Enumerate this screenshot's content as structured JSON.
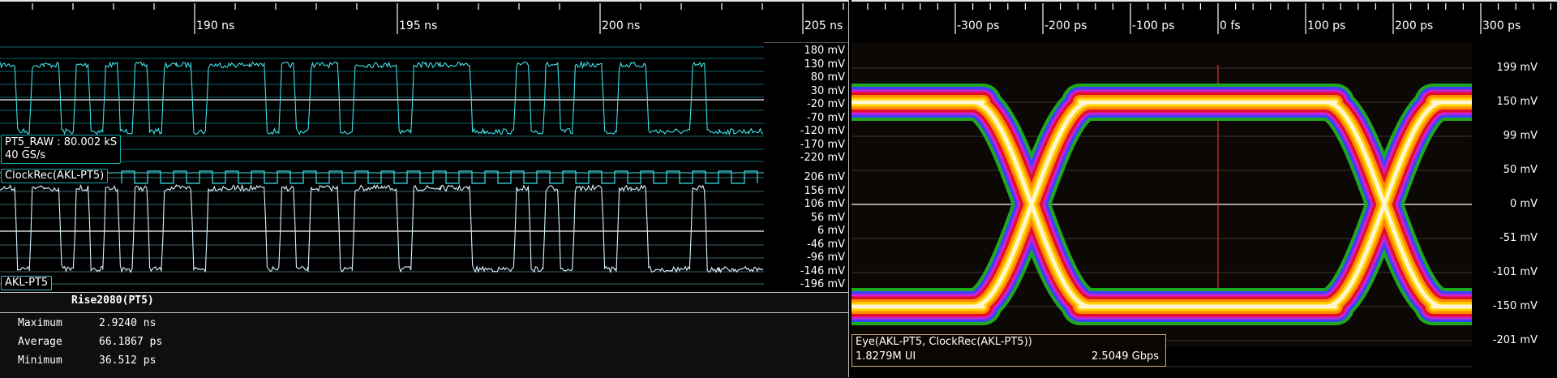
{
  "waveform_pane": {
    "time_axis": {
      "ticks": [
        {
          "label": "190 ns",
          "t": 190
        },
        {
          "label": "195 ns",
          "t": 195
        },
        {
          "label": "200 ns",
          "t": 200
        },
        {
          "label": "205 ns",
          "t": 205
        }
      ]
    },
    "upper_channel": {
      "cursor_info_line1": "PT5_RAW : 80.002 kS",
      "cursor_info_line2": "40 GS/s",
      "trace_color": "#3fe0e6",
      "ylabels": [
        "180 mV",
        "130 mV",
        "80 mV",
        "30 mV",
        "-20 mV",
        "-70 mV",
        "-120 mV",
        "-170 mV",
        "-220 mV"
      ]
    },
    "clock_channel": {
      "label": "ClockRec(AKL-PT5)",
      "trace_color": "#3fe0e6"
    },
    "lower_channel": {
      "label": "AKL-PT5",
      "trace_color": "#d8f3ff",
      "ylabels": [
        "206 mV",
        "156 mV",
        "106 mV",
        "56 mV",
        "6 mV",
        "-46 mV",
        "-96 mV",
        "-146 mV",
        "-196 mV"
      ]
    },
    "bits": "1011010101011011110101101110111100010101101100010000"
  },
  "measurement_panel": {
    "title": "Rise2080(PT5)",
    "rows": [
      {
        "name": "Maximum",
        "value": "2.9240 ns"
      },
      {
        "name": "Average",
        "value": "66.1867 ps"
      },
      {
        "name": "Minimum",
        "value": "36.512 ps"
      }
    ]
  },
  "eye_pane": {
    "time_axis": {
      "ticks": [
        {
          "label": "-300 ps",
          "t": -300
        },
        {
          "label": "-200 ps",
          "t": -200
        },
        {
          "label": "-100 ps",
          "t": -100
        },
        {
          "label": "0 fs",
          "t": 0
        },
        {
          "label": "100 ps",
          "t": 100
        },
        {
          "label": "200 ps",
          "t": 200
        },
        {
          "label": "300 ps",
          "t": 300
        }
      ]
    },
    "ylabels": [
      "199 mV",
      "150 mV",
      "99 mV",
      "50 mV",
      "0 mV",
      "-51 mV",
      "-101 mV",
      "-150 mV",
      "-201 mV"
    ],
    "info_line1": "Eye(AKL-PT5, ClockRec(AKL-PT5))",
    "info_ui": "1.8279M UI",
    "info_rate": "2.5049 Gbps",
    "heat_colors": [
      "#1fa81f",
      "#4040ff",
      "#d11fd1",
      "#e0102a",
      "#ff8a00",
      "#ffd400",
      "#fff6d0"
    ]
  }
}
